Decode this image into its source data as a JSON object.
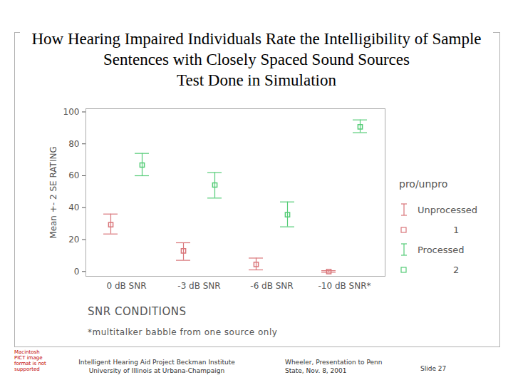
{
  "chart_data": {
    "type": "errorbar",
    "title": "How Hearing Impaired Individuals Rate the Intelligibility of Sample Sentences with Closely Spaced Sound Sources",
    "subtitle": "Test Done in Simulation",
    "x_label": "SNR CONDITIONS",
    "y_label": "Mean +- 2 SE RATING",
    "note": "*multitalker babble from one source only",
    "legend_title": "pro/unpro",
    "legend": "right",
    "grid": false,
    "categories": [
      "0 dB SNR",
      "-3 dB SNR",
      "-6 dB SNR",
      "-10 dB SNR*"
    ],
    "series": [
      {
        "name": "Unprocessed",
        "code": "1",
        "color": "#d9767a",
        "marker": "square",
        "values": [
          29.3,
          12.9,
          4.4,
          0
        ],
        "lower": [
          23.5,
          7,
          1,
          -0.5
        ],
        "upper": [
          36,
          18,
          8.4,
          0.5
        ]
      },
      {
        "name": "Processed",
        "code": "2",
        "color": "#55cc77",
        "marker": "square",
        "values": [
          66.7,
          54.2,
          35.6,
          90.7
        ],
        "lower": [
          60,
          46,
          28,
          87
        ],
        "upper": [
          74,
          62,
          43.6,
          95
        ]
      }
    ],
    "ylim": [
      -3,
      102
    ],
    "yticks": [
      0,
      20,
      40,
      60,
      80,
      100
    ]
  },
  "footer": {
    "pict_notice": "Macintosh PICT image format is not supported",
    "left": [
      "Intelligent Hearing Aid Project Beckman Institute",
      "University of Illinois at Urbana-Champaign"
    ],
    "center": "Wheeler, Presentation to Penn State, Nov. 8, 2001",
    "slide": "Slide 27"
  }
}
